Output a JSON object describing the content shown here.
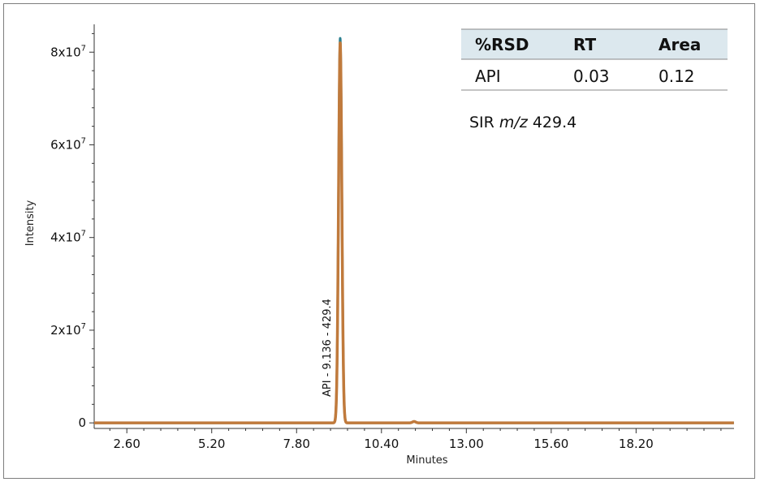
{
  "chart_data": {
    "type": "line",
    "xlabel": "Minutes",
    "ylabel": "Intensity",
    "xlim": [
      1.6,
      21.2
    ],
    "ylim": [
      -1200000,
      86000000
    ],
    "x_ticks": [
      2.6,
      5.2,
      7.8,
      10.4,
      13.0,
      15.6,
      18.2
    ],
    "x_tick_labels": [
      "2.60",
      "5.20",
      "7.80",
      "10.40",
      "13.00",
      "15.60",
      "18.20"
    ],
    "y_ticks": [
      0,
      20000000,
      40000000,
      60000000,
      80000000
    ],
    "y_tick_mantissa": [
      "0",
      "2x10",
      "4x10",
      "6x10",
      "8x10"
    ],
    "y_tick_exponent": [
      "",
      "7",
      "7",
      "7",
      "7"
    ],
    "grid": false,
    "series": [
      {
        "color": "#2a7f8f",
        "peaks": [
          {
            "rt": 9.136,
            "height": 83000000,
            "width": 0.05
          },
          {
            "rt": 11.4,
            "height": 300000,
            "width": 0.05
          }
        ]
      },
      {
        "color": "#c07a3c",
        "peaks": [
          {
            "rt": 9.136,
            "height": 82000000,
            "width": 0.05
          },
          {
            "rt": 11.4,
            "height": 300000,
            "width": 0.05
          }
        ]
      }
    ],
    "annotations": {
      "peak_label": "API - 9.136 - 429.4",
      "peak_label_x": 9.136,
      "sir_prefix": "SIR ",
      "sir_italic": "m/z",
      "sir_value": " 429.4"
    },
    "table": {
      "columns": [
        "%RSD",
        "RT",
        "Area"
      ],
      "rows": [
        [
          "API",
          "0.03",
          "0.12"
        ]
      ],
      "header_bg": "#dce8ee"
    }
  }
}
